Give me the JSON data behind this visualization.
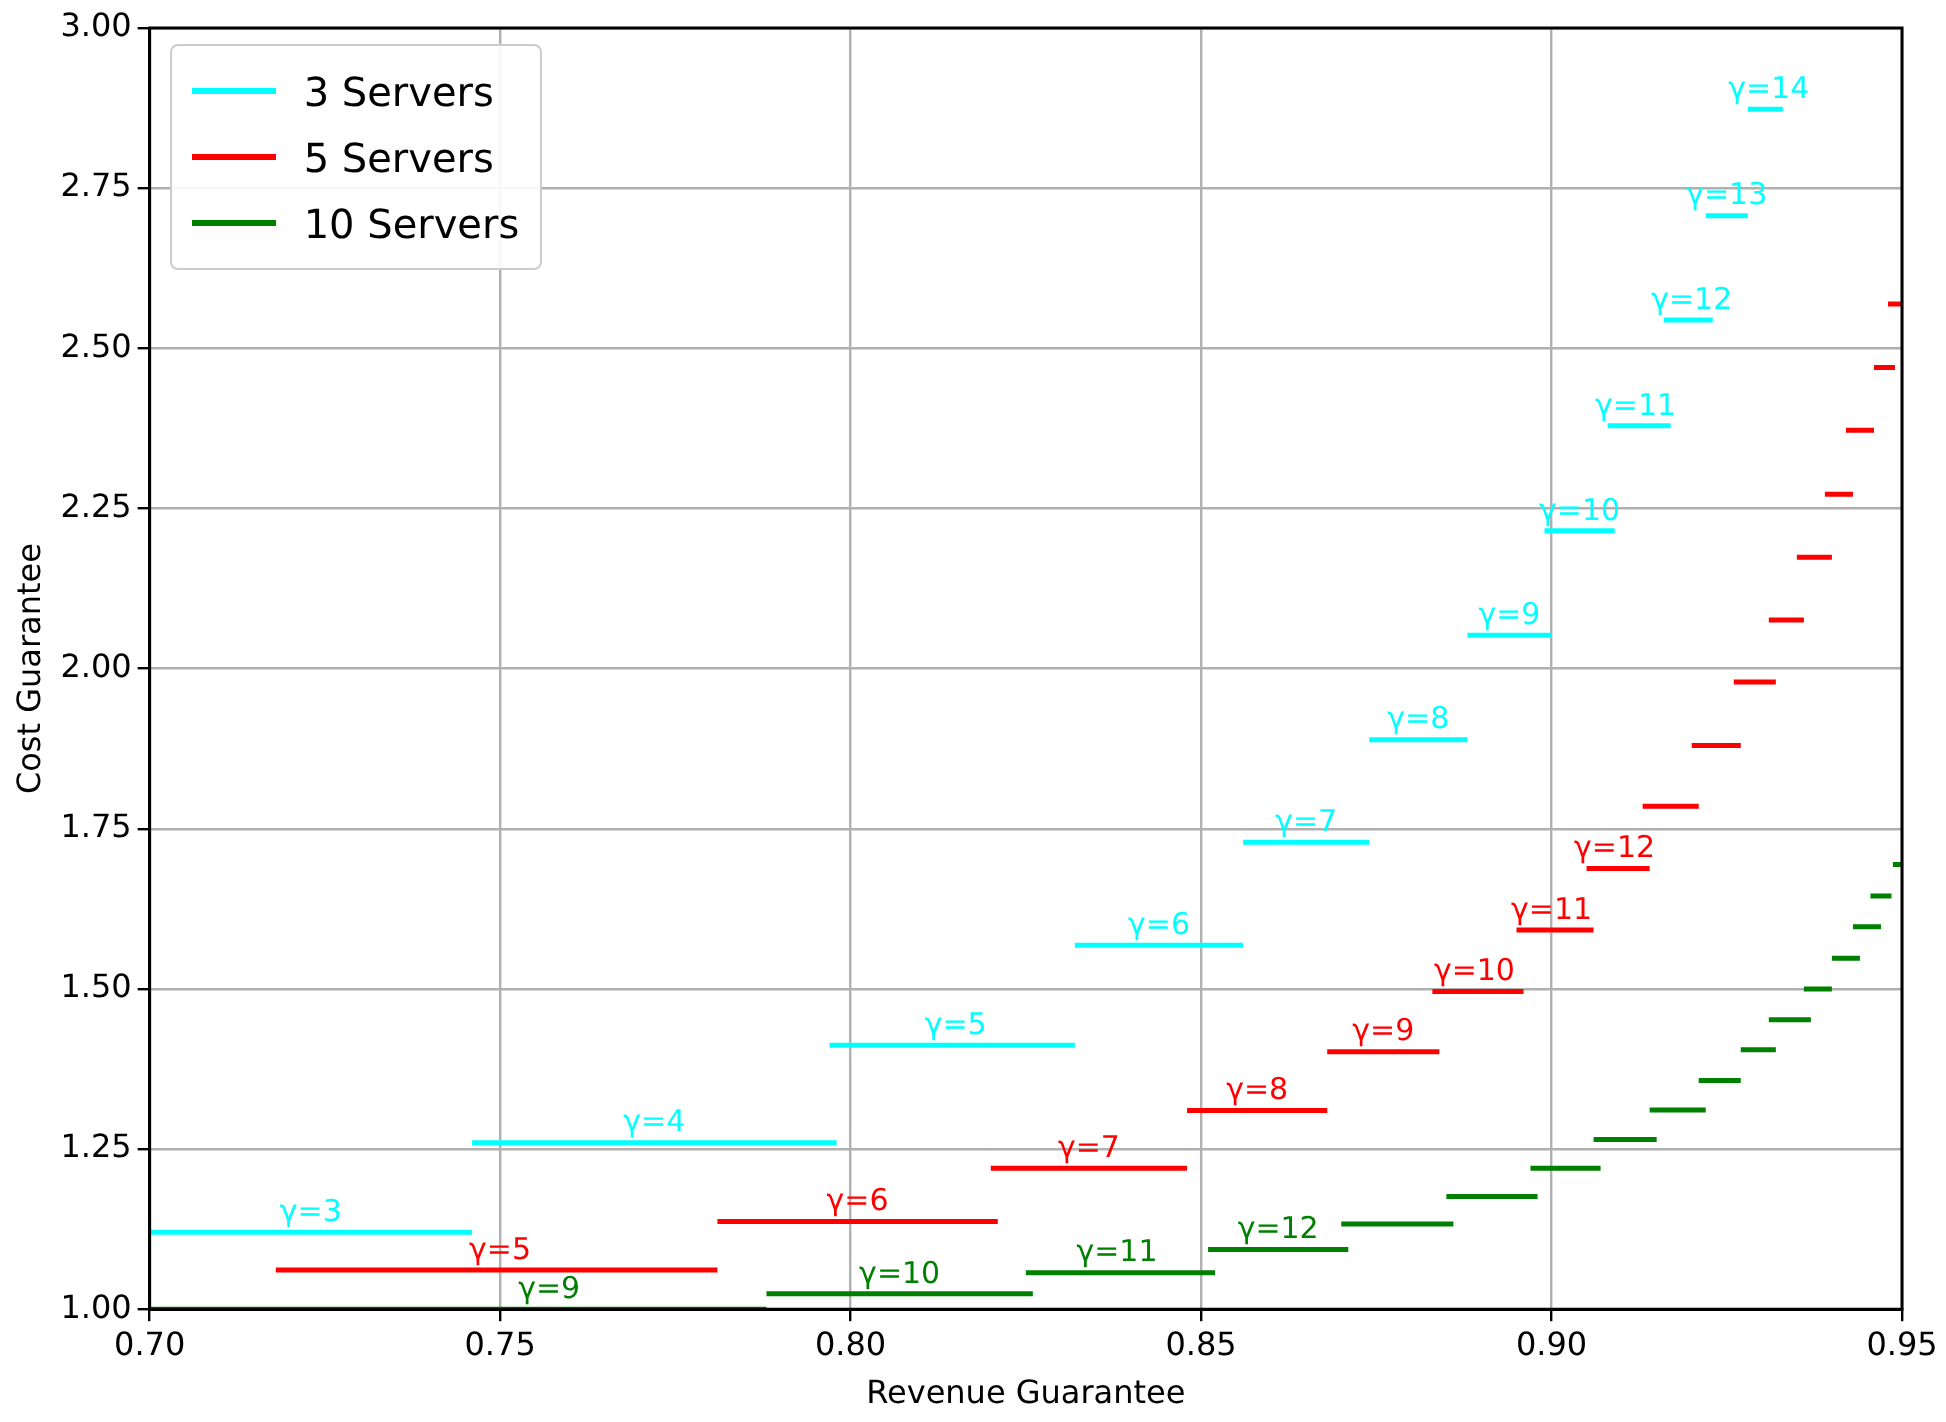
{
  "chart_data": {
    "type": "line",
    "xlabel": "Revenue Guarantee",
    "ylabel": "Cost Guarantee",
    "xlim": [
      0.7,
      0.95
    ],
    "xticks": [
      {
        "value": 0.7,
        "label": "0.70"
      },
      {
        "value": 0.75,
        "label": "0.75"
      },
      {
        "value": 0.8,
        "label": "0.80"
      },
      {
        "value": 0.85,
        "label": "0.85"
      },
      {
        "value": 0.9,
        "label": "0.90"
      },
      {
        "value": 0.95,
        "label": "0.95"
      }
    ],
    "ylim": [
      1,
      3
    ],
    "yticks": [
      {
        "value": 1,
        "label": "1.00"
      },
      {
        "value": 1.25,
        "label": "1.25"
      },
      {
        "value": 1.5,
        "label": "1.50"
      },
      {
        "value": 1.75,
        "label": "1.75"
      },
      {
        "value": 2,
        "label": "2.00"
      },
      {
        "value": 2.25,
        "label": "2.25"
      },
      {
        "value": 2.5,
        "label": "2.50"
      },
      {
        "value": 2.75,
        "label": "2.75"
      },
      {
        "value": 3,
        "label": "3.00"
      }
    ],
    "grid": true,
    "legend": "top left",
    "series": [
      {
        "name": "3 Servers",
        "color": "#00ffff",
        "x": [
          0.7,
          0.746,
          null,
          0.746,
          0.798,
          null,
          0.797,
          0.832,
          null,
          0.832,
          0.856,
          null,
          0.856,
          0.874,
          null,
          0.874,
          0.888,
          null,
          0.888,
          0.9,
          null,
          0.899,
          0.909,
          null,
          0.908,
          0.917,
          null,
          0.916,
          0.923,
          null,
          0.922,
          0.928,
          null,
          0.928,
          0.933
        ],
        "values": [
          1.12,
          1.12,
          null,
          1.26,
          1.26,
          null,
          1.412,
          1.412,
          null,
          1.568,
          1.568,
          null,
          1.729,
          1.729,
          null,
          1.889,
          1.889,
          null,
          2.052,
          2.052,
          null,
          2.215,
          2.215,
          null,
          2.379,
          2.379,
          null,
          2.544,
          2.544,
          null,
          2.707,
          2.707,
          null,
          2.873,
          2.873
        ]
      },
      {
        "name": "5 Servers",
        "color": "#ff0000",
        "x": [
          0.718,
          0.781,
          null,
          0.781,
          0.821,
          null,
          0.82,
          0.848,
          null,
          0.848,
          0.868,
          null,
          0.868,
          0.884,
          null,
          0.883,
          0.896,
          null,
          0.895,
          0.906,
          null,
          0.905,
          0.914,
          null,
          0.913,
          0.921,
          null,
          0.92,
          0.927,
          null,
          0.926,
          0.932,
          null,
          0.931,
          0.936,
          null,
          0.935,
          0.94,
          null,
          0.939,
          0.943,
          null,
          0.942,
          0.946,
          null,
          0.946,
          0.949,
          null,
          0.948,
          0.95
        ],
        "values": [
          1.061,
          1.061,
          null,
          1.137,
          1.137,
          null,
          1.22,
          1.22,
          null,
          1.31,
          1.31,
          null,
          1.402,
          1.402,
          null,
          1.496,
          1.496,
          null,
          1.592,
          1.592,
          null,
          1.688,
          1.688,
          null,
          1.785,
          1.785,
          null,
          1.88,
          1.88,
          null,
          1.979,
          1.979,
          null,
          2.076,
          2.076,
          null,
          2.174,
          2.174,
          null,
          2.272,
          2.272,
          null,
          2.372,
          2.372,
          null,
          2.47,
          2.47,
          null,
          2.569,
          2.569
        ]
      },
      {
        "name": "10 Servers",
        "color": "#008000",
        "x": [
          0.7,
          0.788,
          null,
          0.788,
          0.826,
          null,
          0.825,
          0.852,
          null,
          0.851,
          0.871,
          null,
          0.87,
          0.886,
          null,
          0.885,
          0.898,
          null,
          0.897,
          0.907,
          null,
          0.906,
          0.915,
          null,
          0.914,
          0.922,
          null,
          0.921,
          0.927,
          null,
          0.927,
          0.932,
          null,
          0.931,
          0.937,
          null,
          0.936,
          0.94,
          null,
          0.94,
          0.944,
          null,
          0.943,
          0.947,
          null,
          0.9455,
          0.9485,
          null,
          0.9487,
          0.95
        ],
        "values": [
          1.0,
          1.0,
          null,
          1.024,
          1.024,
          null,
          1.057,
          1.057,
          null,
          1.093,
          1.093,
          null,
          1.133,
          1.133,
          null,
          1.176,
          1.176,
          null,
          1.22,
          1.22,
          null,
          1.265,
          1.265,
          null,
          1.311,
          1.311,
          null,
          1.357,
          1.357,
          null,
          1.405,
          1.405,
          null,
          1.452,
          1.452,
          null,
          1.5,
          1.5,
          null,
          1.548,
          1.548,
          null,
          1.597,
          1.597,
          null,
          1.645,
          1.645,
          null,
          1.694,
          1.694
        ]
      }
    ],
    "annotations": [
      {
        "text": "γ=3",
        "x": 0.723,
        "y": 1.12
      },
      {
        "text": "γ=4",
        "x": 0.772,
        "y": 1.26
      },
      {
        "text": "γ=5",
        "x": 0.815,
        "y": 1.412
      },
      {
        "text": "γ=6",
        "x": 0.844,
        "y": 1.568
      },
      {
        "text": "γ=7",
        "x": 0.865,
        "y": 1.729
      },
      {
        "text": "γ=8",
        "x": 0.881,
        "y": 1.889
      },
      {
        "text": "γ=9",
        "x": 0.894,
        "y": 2.052
      },
      {
        "text": "γ=10",
        "x": 0.904,
        "y": 2.215
      },
      {
        "text": "γ=11",
        "x": 0.912,
        "y": 2.379
      },
      {
        "text": "γ=12",
        "x": 0.92,
        "y": 2.544
      },
      {
        "text": "γ=13",
        "x": 0.925,
        "y": 2.707
      },
      {
        "text": "γ=14",
        "x": 0.931,
        "y": 2.873
      },
      {
        "text": "γ=5",
        "x": 0.75,
        "y": 1.061
      },
      {
        "text": "γ=6",
        "x": 0.801,
        "y": 1.137
      },
      {
        "text": "γ=7",
        "x": 0.834,
        "y": 1.22
      },
      {
        "text": "γ=8",
        "x": 0.858,
        "y": 1.31
      },
      {
        "text": "γ=9",
        "x": 0.876,
        "y": 1.402
      },
      {
        "text": "γ=10",
        "x": 0.889,
        "y": 1.496
      },
      {
        "text": "γ=11",
        "x": 0.9,
        "y": 1.592
      },
      {
        "text": "γ=12",
        "x": 0.909,
        "y": 1.688
      },
      {
        "text": "γ=9",
        "x": 0.757,
        "y": 1.0
      },
      {
        "text": "γ=10",
        "x": 0.807,
        "y": 1.024
      },
      {
        "text": "γ=11",
        "x": 0.838,
        "y": 1.057
      },
      {
        "text": "γ=12",
        "x": 0.861,
        "y": 1.093
      }
    ]
  }
}
